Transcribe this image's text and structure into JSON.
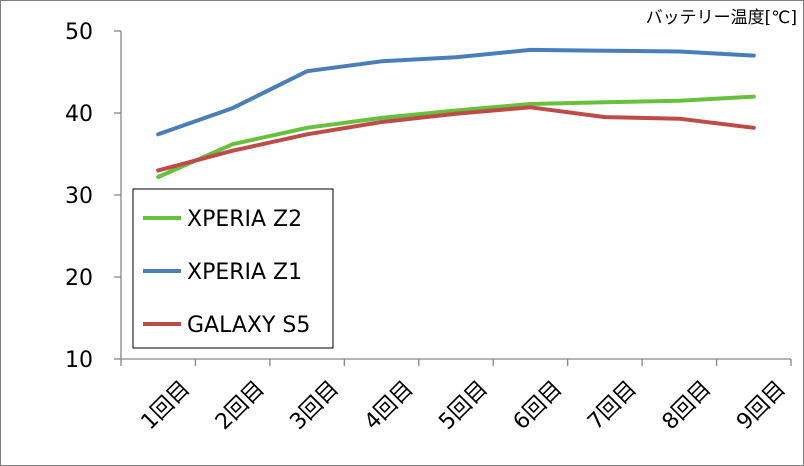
{
  "chart_data": {
    "type": "line",
    "title": "",
    "ylabel": "バッテリー温度[℃]",
    "xlabel": "",
    "ylim": [
      10,
      50
    ],
    "yticks": [
      10,
      20,
      30,
      40,
      50
    ],
    "grid": false,
    "legend": "left-bottom-inset",
    "categories": [
      "1回目",
      "2回目",
      "3回目",
      "4回目",
      "5回目",
      "6回目",
      "7回目",
      "8回目",
      "9回目"
    ],
    "series": [
      {
        "name": "XPERIA Z2",
        "color": "#66c23c",
        "values": [
          32.2,
          36.2,
          38.2,
          39.4,
          40.3,
          41.1,
          41.3,
          41.5,
          42.0
        ]
      },
      {
        "name": "XPERIA Z1",
        "color": "#4a7ebb",
        "values": [
          37.4,
          40.6,
          45.1,
          46.3,
          46.8,
          47.7,
          47.6,
          47.5,
          47.0
        ]
      },
      {
        "name": "GALAXY S5",
        "color": "#be4b48",
        "values": [
          33.0,
          35.4,
          37.4,
          38.9,
          39.9,
          40.7,
          39.5,
          39.3,
          38.2
        ]
      }
    ]
  }
}
